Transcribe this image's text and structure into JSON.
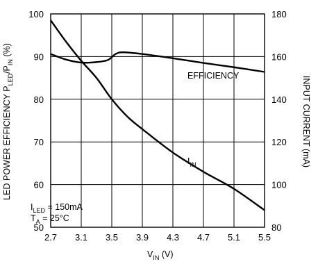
{
  "chart_data": {
    "type": "line",
    "x_axis": {
      "label_main": "V",
      "label_sub": "IN",
      "label_unit": " (V)",
      "range": [
        2.7,
        5.5
      ],
      "ticks": [
        "2.7",
        "3.1",
        "3.5",
        "3.9",
        "4.3",
        "4.7",
        "5.1",
        "5.5"
      ]
    },
    "y_left": {
      "label_part1": "LED POWER EFFICIENCY P",
      "label_sub1": "LED",
      "label_part2": "/P",
      "label_sub2": "IN",
      "label_part3": " (%)",
      "range": [
        50,
        100
      ],
      "ticks": [
        "50",
        "60",
        "70",
        "80",
        "90",
        "100"
      ]
    },
    "y_right": {
      "label": "INPUT CURRENT (mA)",
      "range": [
        80,
        180
      ],
      "ticks": [
        "80",
        "100",
        "120",
        "140",
        "160",
        "180"
      ]
    },
    "grid": true,
    "series": [
      {
        "name": "EFFICIENCY",
        "axis": "left",
        "x": [
          2.7,
          2.9,
          3.1,
          3.3,
          3.45,
          3.55,
          3.65,
          3.9,
          4.3,
          4.7,
          5.1,
          5.5
        ],
        "y": [
          90.6,
          89.3,
          88.6,
          88.7,
          89.2,
          90.6,
          91.0,
          90.6,
          89.6,
          88.5,
          87.5,
          86.4
        ]
      },
      {
        "name": "I",
        "name_sub": "IN",
        "axis": "right",
        "x": [
          2.7,
          2.9,
          3.1,
          3.3,
          3.5,
          3.7,
          3.9,
          4.3,
          4.7,
          5.1,
          5.5
        ],
        "y": [
          177,
          167,
          158,
          150,
          140,
          132,
          126,
          115,
          106,
          98,
          88
        ]
      }
    ],
    "annotations": {
      "line1_main": "I",
      "line1_sub": "LED",
      "line1_rest": " = 150mA",
      "line2_main": "T",
      "line2_sub": "A",
      "line2_rest": " = 25°C"
    }
  }
}
